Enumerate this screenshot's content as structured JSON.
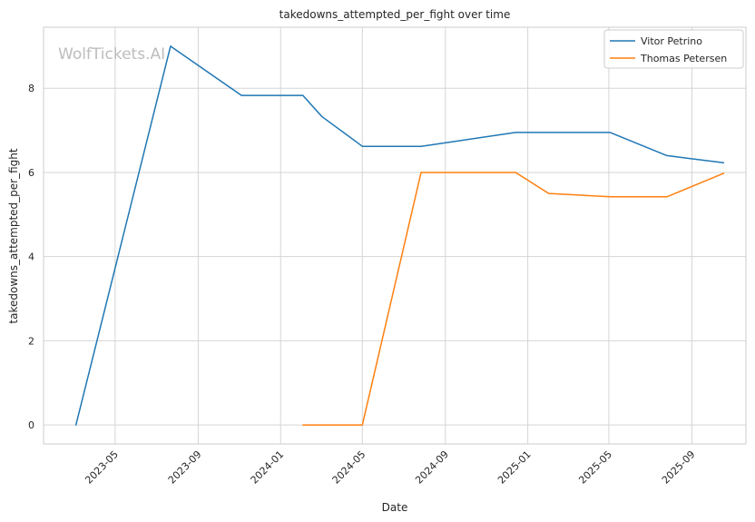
{
  "watermark": "WolfTickets.AI",
  "chart_data": {
    "type": "line",
    "title": "takedowns_attempted_per_fight over time",
    "xlabel": "Date",
    "ylabel": "takedowns_attempted_per_fight",
    "xlim": [
      "2023-01-15",
      "2025-11-20"
    ],
    "ylim": [
      -0.45,
      9.45
    ],
    "x_ticks": [
      "2023-05",
      "2023-09",
      "2024-01",
      "2024-05",
      "2024-09",
      "2025-01",
      "2025-05",
      "2025-09"
    ],
    "y_ticks": [
      "0",
      "2",
      "4",
      "6",
      "8"
    ],
    "grid": true,
    "legend": "top-right",
    "series": [
      {
        "name": "Vitor Petrino",
        "color": "#1f77b4",
        "points": [
          [
            "2023-03-04",
            0
          ],
          [
            "2023-07-22",
            9.0
          ],
          [
            "2023-11-04",
            7.83
          ],
          [
            "2024-02-03",
            7.83
          ],
          [
            "2024-03-02",
            7.33
          ],
          [
            "2024-05-01",
            6.62
          ],
          [
            "2024-07-27",
            6.62
          ],
          [
            "2024-12-14",
            6.95
          ],
          [
            "2025-05-03",
            6.95
          ],
          [
            "2025-07-26",
            6.4
          ],
          [
            "2025-10-18",
            6.23
          ]
        ]
      },
      {
        "name": "Thomas Petersen",
        "color": "#ff7f0e",
        "points": [
          [
            "2024-02-03",
            0
          ],
          [
            "2024-05-01",
            0
          ],
          [
            "2024-07-27",
            6.0
          ],
          [
            "2024-12-14",
            6.0
          ],
          [
            "2025-02-01",
            5.5
          ],
          [
            "2025-05-03",
            5.42
          ],
          [
            "2025-07-26",
            5.42
          ],
          [
            "2025-10-18",
            5.98
          ]
        ]
      }
    ]
  }
}
